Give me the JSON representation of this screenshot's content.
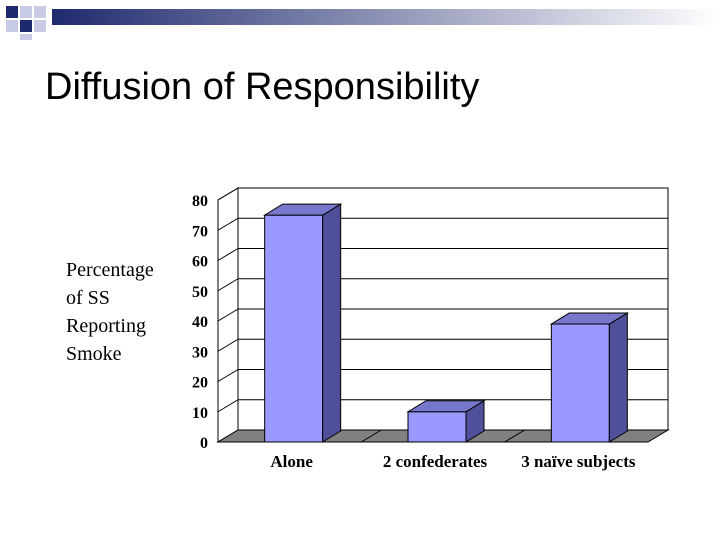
{
  "slide": {
    "title": "Diffusion of Responsibility",
    "ylabel_lines": [
      "Percentage",
      "of SS",
      "Reporting",
      "Smoke"
    ]
  },
  "theme": {
    "square_dark": "#1f2a6e",
    "square_light": "#c7cbe6",
    "gradient_start": "#1f2a6e",
    "gradient_end": "#ffffff"
  },
  "chart_data": {
    "type": "bar",
    "categories": [
      "Alone",
      "2 confederates",
      "3 naïve subjects"
    ],
    "values": [
      75,
      10,
      39
    ],
    "yticks": [
      0,
      10,
      20,
      30,
      40,
      50,
      60,
      70,
      80
    ],
    "ylim": [
      0,
      80
    ],
    "ylabel": "Percentage of SS Reporting Smoke",
    "grid": true,
    "bar_color": "#9999ff",
    "bar_side_color": "#4f4f9a",
    "bar_top_color": "#7777cc",
    "floor_color": "#808080",
    "wall_color": "#ffffff"
  }
}
